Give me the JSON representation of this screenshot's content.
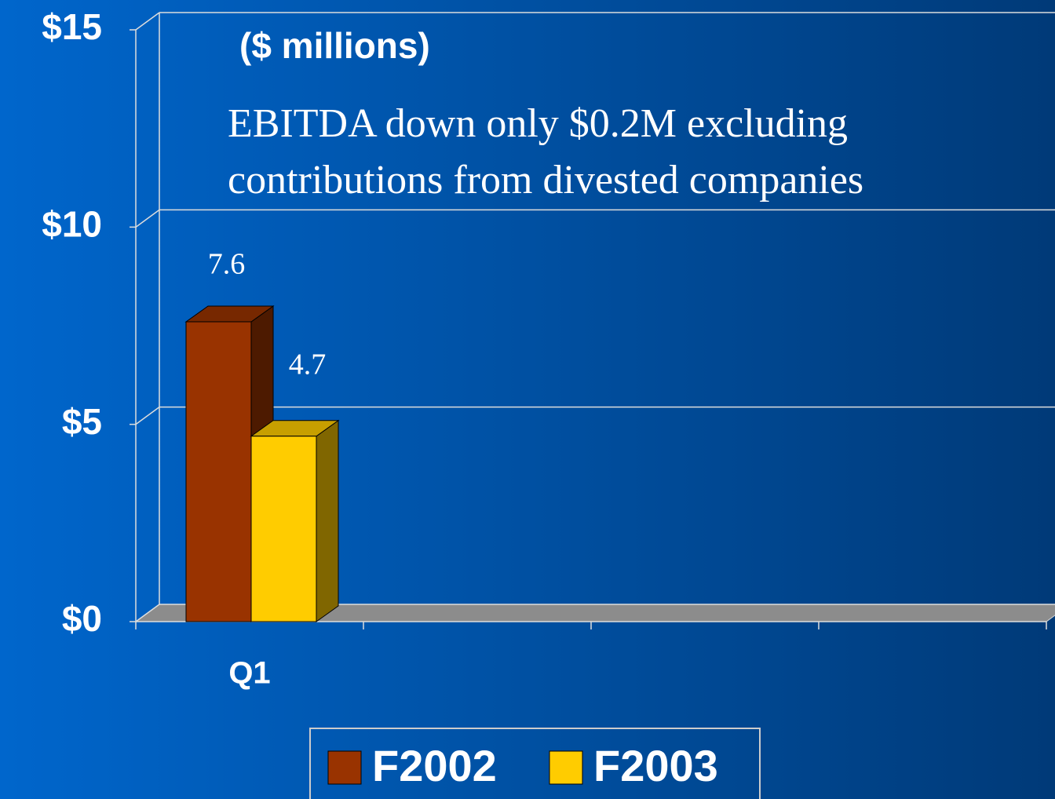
{
  "chart_data": {
    "type": "bar3d",
    "subtitle": "($ millions)",
    "annotation": [
      "EBITDA down only $0.2M excluding",
      "contributions from divested companies"
    ],
    "categories": [
      "Q1",
      null,
      null,
      null
    ],
    "series": [
      {
        "name": "F2002",
        "color": "#993300",
        "values": [
          7.6,
          null,
          null,
          null
        ]
      },
      {
        "name": "F2003",
        "color": "#ffcc00",
        "values": [
          4.7,
          null,
          null,
          null
        ]
      }
    ],
    "ylim": [
      0,
      15
    ],
    "yticks": [
      {
        "value": 0,
        "label": "$0"
      },
      {
        "value": 5,
        "label": "$5"
      },
      {
        "value": 10,
        "label": "$10"
      },
      {
        "value": 15,
        "label": "$15"
      }
    ],
    "grid": true,
    "legend": "bottom"
  }
}
